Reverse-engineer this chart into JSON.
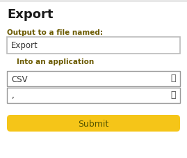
{
  "bg_color": "#e8e8e8",
  "panel_bg": "#ffffff",
  "title": "Export",
  "title_color": "#1a1a1a",
  "label1": "Output to a file named:",
  "label1_color": "#6b5a00",
  "input1_text": "Export",
  "input1_text_color": "#333333",
  "input1_border": "#bbbbbb",
  "label2": "Into an application",
  "label2_color": "#6b5a00",
  "dropdown1_text": "CSV",
  "dropdown2_text": ",",
  "dropdown_text_color": "#333333",
  "dropdown_border": "#999999",
  "dropdown_arrow_color": "#444444",
  "submit_text": "Submit",
  "submit_bg": "#f5c518",
  "submit_text_color": "#555500",
  "figw": 2.69,
  "figh": 2.28,
  "dpi": 100
}
